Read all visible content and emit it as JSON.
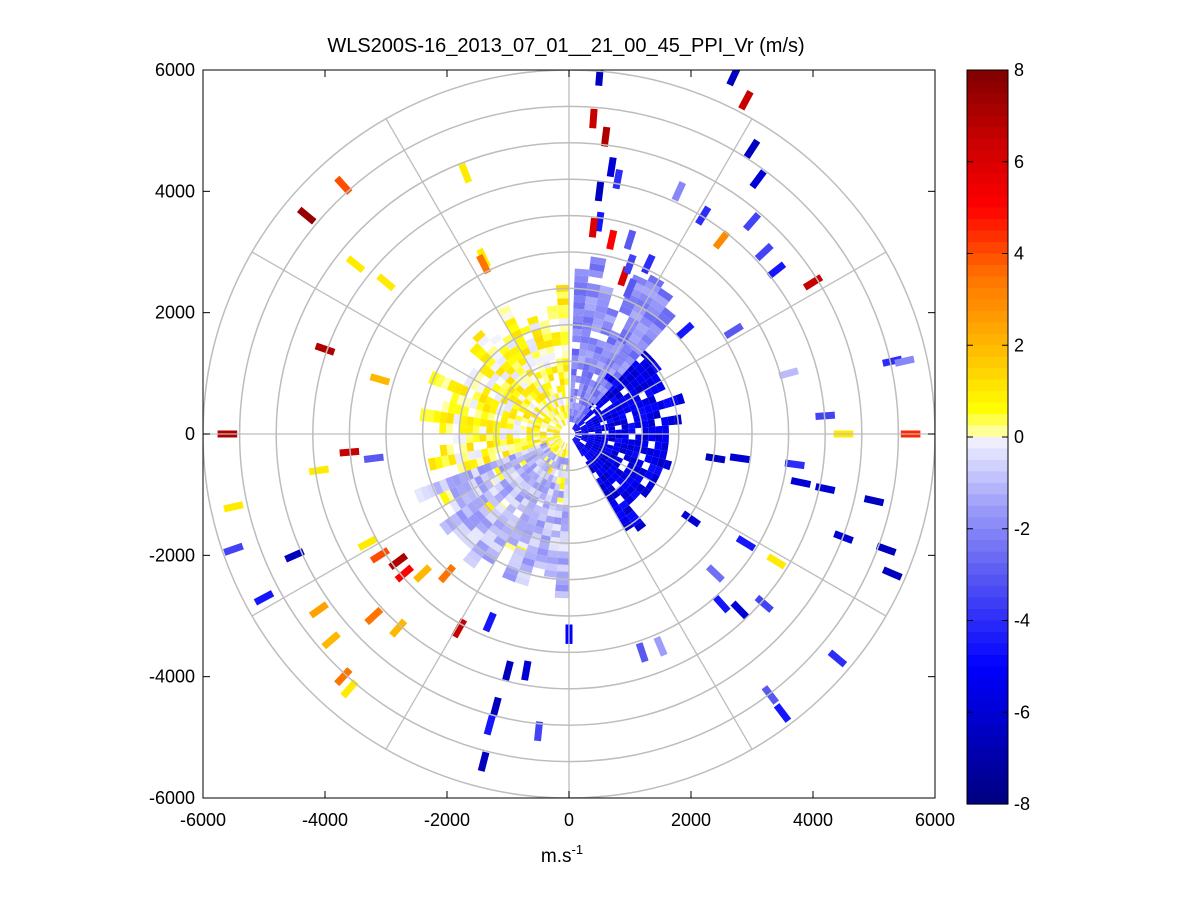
{
  "chart_data": {
    "type": "heatmap",
    "subtype": "polar-ppi",
    "title": "WLS200S-16_2013_07_01__21_00_45_PPI_Vr (m/s)",
    "xlabel_base": "m.s",
    "xlabel_exp": "-1",
    "ylabel": "",
    "xlim": [
      -6000,
      6000
    ],
    "ylim": [
      -6000,
      6000
    ],
    "x_ticks": [
      "-6000",
      "-4000",
      "-2000",
      "0",
      "2000",
      "4000",
      "6000"
    ],
    "y_ticks": [
      "6000",
      "4000",
      "2000",
      "0",
      "-2000",
      "-4000",
      "-6000"
    ],
    "range_rings_m": [
      600,
      1200,
      1800,
      2400,
      3000,
      3600,
      4200,
      4800,
      5400,
      6000
    ],
    "radial_spokes_deg": [
      0,
      30,
      60,
      90,
      120,
      150,
      180,
      210,
      240,
      270,
      300,
      330
    ],
    "colorbar": {
      "min": -8,
      "max": 8,
      "ticks": [
        "8",
        "6",
        "4",
        "2",
        "0",
        "-2",
        "-4",
        "-6",
        "-8"
      ]
    },
    "regions": [
      {
        "name": "near-field west half (toward, yellow)",
        "r_min": 150,
        "r_max": 2100,
        "az_from": 180,
        "az_to": 360,
        "velocity_ms": 0.5
      },
      {
        "name": "near-field east quadrant (away, dark blue)",
        "r_min": 100,
        "r_max": 1700,
        "az_from": 30,
        "az_to": 150,
        "velocity_ms": -5.5
      },
      {
        "name": "near-field north (light blue)",
        "r_min": 200,
        "r_max": 2500,
        "az_from": 2,
        "az_to": 40,
        "velocity_ms": -2.0
      },
      {
        "name": "near-field south-west (light blue)",
        "r_min": 400,
        "r_max": 2400,
        "az_from": 180,
        "az_to": 250,
        "velocity_ms": -1.0
      }
    ],
    "scattered_gates": [
      {
        "x": 2700,
        "y": 5900,
        "v": -6.5
      },
      {
        "x": 2900,
        "y": 5500,
        "v": 6.5
      },
      {
        "x": 3000,
        "y": 4700,
        "v": -6.5
      },
      {
        "x": 3100,
        "y": 4200,
        "v": -6.0
      },
      {
        "x": 3000,
        "y": 3500,
        "v": -3.5
      },
      {
        "x": 1800,
        "y": 4000,
        "v": -2.0
      },
      {
        "x": 2200,
        "y": 3600,
        "v": -4.0
      },
      {
        "x": 2500,
        "y": 3200,
        "v": 3.0
      },
      {
        "x": 3200,
        "y": 3000,
        "v": -3.5
      },
      {
        "x": 3400,
        "y": 2700,
        "v": -4.5
      },
      {
        "x": 4000,
        "y": 2500,
        "v": 6.5
      },
      {
        "x": 1900,
        "y": 1700,
        "v": -4.5
      },
      {
        "x": 2700,
        "y": 1700,
        "v": -3.0
      },
      {
        "x": 5300,
        "y": 1200,
        "v": -4.0
      },
      {
        "x": 5500,
        "y": 1200,
        "v": -2.0
      },
      {
        "x": 3600,
        "y": 1000,
        "v": -1.0
      },
      {
        "x": 4200,
        "y": 300,
        "v": -3.5
      },
      {
        "x": 4500,
        "y": 0,
        "v": 1.0
      },
      {
        "x": 5600,
        "y": 0,
        "v": 4.5
      },
      {
        "x": 2400,
        "y": -400,
        "v": -6.5
      },
      {
        "x": 2800,
        "y": -400,
        "v": -6.0
      },
      {
        "x": 3700,
        "y": -500,
        "v": -4.0
      },
      {
        "x": 3800,
        "y": -800,
        "v": -6.0
      },
      {
        "x": 4200,
        "y": -900,
        "v": -6.0
      },
      {
        "x": 5000,
        "y": -1100,
        "v": -6.5
      },
      {
        "x": 4500,
        "y": -1700,
        "v": -6.0
      },
      {
        "x": 5200,
        "y": -1900,
        "v": -6.5
      },
      {
        "x": 5300,
        "y": -2300,
        "v": -6.5
      },
      {
        "x": 2000,
        "y": -1400,
        "v": -6.0
      },
      {
        "x": 2900,
        "y": -1800,
        "v": -4.5
      },
      {
        "x": 3400,
        "y": -2100,
        "v": 1.0
      },
      {
        "x": 2400,
        "y": -2300,
        "v": -2.5
      },
      {
        "x": 2500,
        "y": -2800,
        "v": -4.5
      },
      {
        "x": 2800,
        "y": -2900,
        "v": -6.0
      },
      {
        "x": 3200,
        "y": -2800,
        "v": -3.5
      },
      {
        "x": 1200,
        "y": -3600,
        "v": -3.0
      },
      {
        "x": 1500,
        "y": -3500,
        "v": -1.5
      },
      {
        "x": 4400,
        "y": -3700,
        "v": -4.0
      },
      {
        "x": 3300,
        "y": -4300,
        "v": -3.0
      },
      {
        "x": 3500,
        "y": -4600,
        "v": -4.5
      },
      {
        "x": -1000,
        "y": -3900,
        "v": -6.5
      },
      {
        "x": -700,
        "y": -3900,
        "v": -6.0
      },
      {
        "x": 0,
        "y": -3300,
        "v": -5.0
      },
      {
        "x": -1200,
        "y": -4500,
        "v": -6.5
      },
      {
        "x": -1300,
        "y": -4800,
        "v": -4.5
      },
      {
        "x": -500,
        "y": -4900,
        "v": -3.5
      },
      {
        "x": -1400,
        "y": -5400,
        "v": -6.5
      },
      {
        "x": -1800,
        "y": -3200,
        "v": 6.5
      },
      {
        "x": -1300,
        "y": -3100,
        "v": -4.5
      },
      {
        "x": -2800,
        "y": -2100,
        "v": 7.0
      },
      {
        "x": -2700,
        "y": -2300,
        "v": 5.0
      },
      {
        "x": -2400,
        "y": -2300,
        "v": 2.0
      },
      {
        "x": -2000,
        "y": -2300,
        "v": 3.5
      },
      {
        "x": -3100,
        "y": -2000,
        "v": 4.0
      },
      {
        "x": -3300,
        "y": -1800,
        "v": 1.0
      },
      {
        "x": -4500,
        "y": -2000,
        "v": -6.5
      },
      {
        "x": -5500,
        "y": -1200,
        "v": 1.0
      },
      {
        "x": -5500,
        "y": -1900,
        "v": -3.5
      },
      {
        "x": -5000,
        "y": -2700,
        "v": -4.5
      },
      {
        "x": -4100,
        "y": -2900,
        "v": 2.5
      },
      {
        "x": -3900,
        "y": -3400,
        "v": 2.0
      },
      {
        "x": -3700,
        "y": -4000,
        "v": 3.5
      },
      {
        "x": -3600,
        "y": -4200,
        "v": 1.0
      },
      {
        "x": -3200,
        "y": -3000,
        "v": 3.5
      },
      {
        "x": -2800,
        "y": -3200,
        "v": 2.0
      },
      {
        "x": -5600,
        "y": 0,
        "v": 7.0
      },
      {
        "x": -3600,
        "y": -300,
        "v": 6.5
      },
      {
        "x": -4100,
        "y": -600,
        "v": 1.0
      },
      {
        "x": -3200,
        "y": -400,
        "v": -3.0
      },
      {
        "x": -4000,
        "y": 1400,
        "v": 7.0
      },
      {
        "x": -3100,
        "y": 900,
        "v": 2.0
      },
      {
        "x": -3500,
        "y": 2800,
        "v": 1.0
      },
      {
        "x": -3000,
        "y": 2500,
        "v": 1.0
      },
      {
        "x": -4300,
        "y": 3600,
        "v": 7.5
      },
      {
        "x": -3700,
        "y": 4100,
        "v": 4.0
      },
      {
        "x": -1700,
        "y": 4300,
        "v": 1.0
      },
      {
        "x": -1400,
        "y": 2900,
        "v": 1.0
      },
      {
        "x": -1400,
        "y": 2800,
        "v": 3.5
      },
      {
        "x": 500,
        "y": 5900,
        "v": -6.5
      },
      {
        "x": 400,
        "y": 5200,
        "v": 6.5
      },
      {
        "x": 600,
        "y": 4900,
        "v": 7.0
      },
      {
        "x": 700,
        "y": 4400,
        "v": -6.0
      },
      {
        "x": 800,
        "y": 4200,
        "v": -4.0
      },
      {
        "x": 500,
        "y": 4000,
        "v": -6.5
      },
      {
        "x": 500,
        "y": 3500,
        "v": -4.5
      },
      {
        "x": 400,
        "y": 3400,
        "v": 6.0
      },
      {
        "x": 700,
        "y": 3200,
        "v": 5.0
      },
      {
        "x": 1000,
        "y": 3200,
        "v": -3.0
      },
      {
        "x": 1300,
        "y": 2800,
        "v": -4.0
      },
      {
        "x": 900,
        "y": 2600,
        "v": 6.0
      },
      {
        "x": 1000,
        "y": 2800,
        "v": -3.5
      },
      {
        "x": 1000,
        "y": 2400,
        "v": -3.0
      }
    ]
  }
}
